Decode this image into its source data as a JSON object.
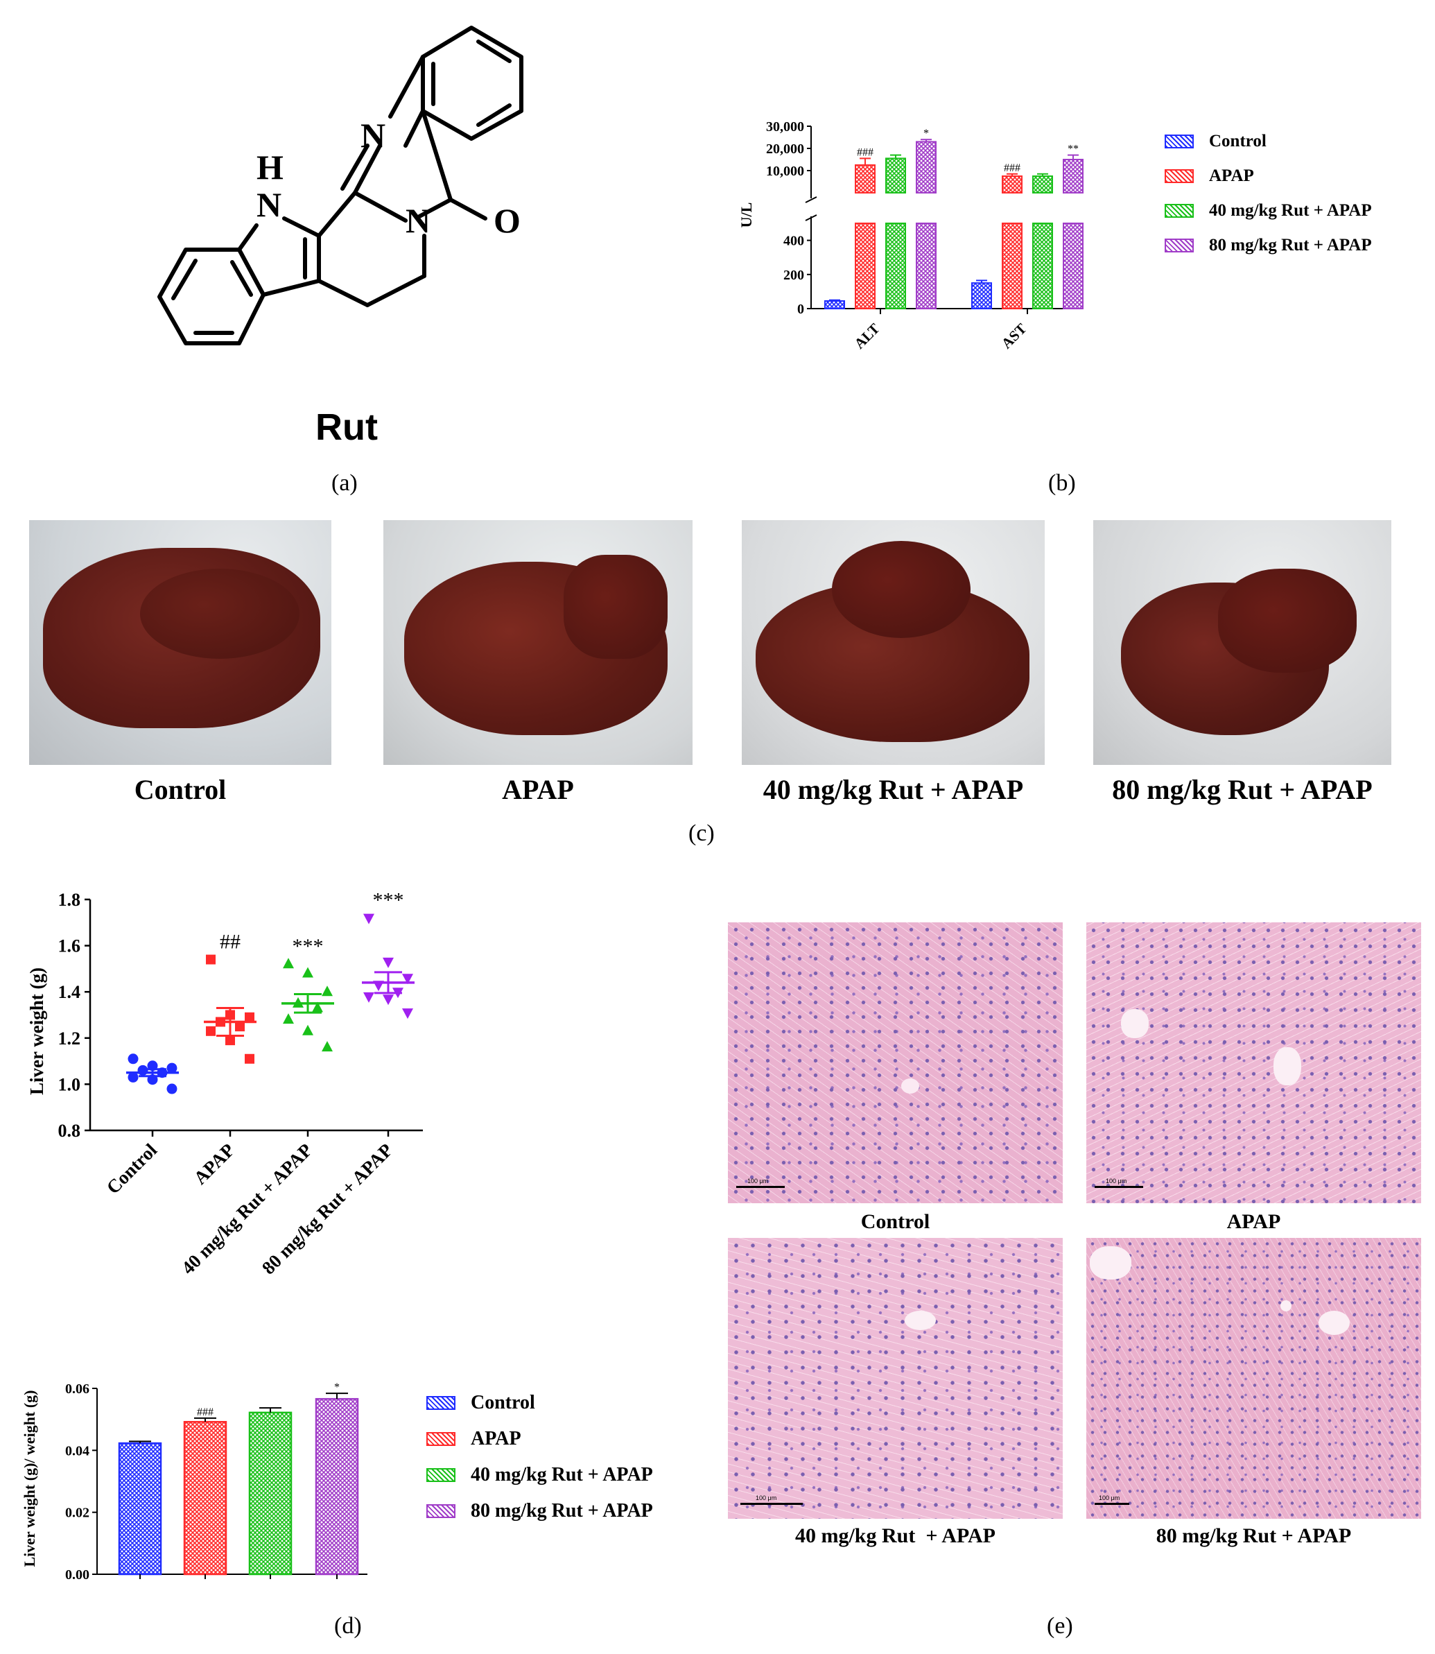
{
  "panels": {
    "a": "(a)",
    "b": "(b)",
    "c": "(c)",
    "d": "(d)",
    "e": "(e)"
  },
  "molecule": {
    "name": "Rut",
    "atoms": {
      "H": "H",
      "N_indole": "N",
      "N_top": "N",
      "N_ring": "N",
      "O": "O"
    }
  },
  "colors": {
    "control": "#1f2cff",
    "apap": "#ff2a2a",
    "rut40": "#19c019",
    "rut80": "#a03cc8",
    "rut80_scatter": "#a020f0"
  },
  "groups": [
    "Control",
    "APAP",
    "40 mg/kg Rut + APAP",
    "80 mg/kg Rut + APAP"
  ],
  "photos": {
    "captions": [
      "Control",
      "APAP",
      "40 mg/kg Rut + APAP",
      "80 mg/kg Rut + APAP"
    ]
  },
  "histology": {
    "captions": [
      "Control",
      "APAP",
      "40 mg/kg Rut  + APAP",
      "80 mg/kg Rut + APAP"
    ],
    "scalebar_label": "100 μm"
  },
  "chart_data": [
    {
      "id": "b",
      "type": "bar",
      "categories": [
        "ALT",
        "AST"
      ],
      "ylabel": "U/L",
      "axis_break": true,
      "ticks_lower": [
        "0",
        "200",
        "400"
      ],
      "ticks_upper": [
        "10,000",
        "20,000",
        "30,000"
      ],
      "series": [
        {
          "name": "Control",
          "values": [
            45,
            150
          ],
          "errors": [
            5,
            15
          ],
          "marks": [
            "",
            ""
          ]
        },
        {
          "name": "APAP",
          "values": [
            12500,
            7500
          ],
          "errors": [
            3000,
            1000
          ],
          "marks": [
            "###",
            "###"
          ]
        },
        {
          "name": "40 mg/kg Rut + APAP",
          "values": [
            15500,
            7500
          ],
          "errors": [
            1500,
            1000
          ],
          "marks": [
            "",
            ""
          ]
        },
        {
          "name": "80 mg/kg Rut + APAP",
          "values": [
            23000,
            15000
          ],
          "errors": [
            1000,
            2000
          ],
          "marks": [
            "*",
            "**"
          ]
        }
      ]
    },
    {
      "id": "d-scatter",
      "type": "scatter",
      "ylabel": "Liver weight (g)",
      "ylim": [
        0.8,
        1.8
      ],
      "yticks": [
        "0.8",
        "1.0",
        "1.2",
        "1.4",
        "1.6",
        "1.8"
      ],
      "categories": [
        "Control",
        "APAP",
        "40 mg/kg Rut + APAP",
        "80 mg/kg Rut + APAP"
      ],
      "series": [
        {
          "name": "Control",
          "points": [
            1.11,
            1.08,
            1.07,
            1.06,
            1.05,
            1.03,
            1.02,
            0.98
          ],
          "mean": 1.05,
          "sem": 0.015,
          "mark": ""
        },
        {
          "name": "APAP",
          "points": [
            1.54,
            1.3,
            1.29,
            1.27,
            1.25,
            1.23,
            1.19,
            1.11
          ],
          "mean": 1.27,
          "sem": 0.06,
          "mark": "##"
        },
        {
          "name": "40 mg/kg Rut + APAP",
          "points": [
            1.52,
            1.48,
            1.4,
            1.35,
            1.33,
            1.28,
            1.23,
            1.16
          ],
          "mean": 1.35,
          "sem": 0.04,
          "mark": "***"
        },
        {
          "name": "80 mg/kg Rut + APAP",
          "points": [
            1.72,
            1.53,
            1.46,
            1.43,
            1.4,
            1.38,
            1.37,
            1.31
          ],
          "mean": 1.44,
          "sem": 0.045,
          "mark": "***"
        }
      ]
    },
    {
      "id": "d-bar",
      "type": "bar",
      "ylabel": "Liver weight (g)/ weight (g)",
      "ylim": [
        0,
        0.06
      ],
      "yticks": [
        "0.00",
        "0.02",
        "0.04",
        "0.06"
      ],
      "categories": [
        "Control",
        "APAP",
        "40 mg/kg Rut + APAP",
        "80 mg/kg Rut + APAP"
      ],
      "values": [
        0.0423,
        0.0492,
        0.0522,
        0.0566
      ],
      "errors": [
        0.0006,
        0.0012,
        0.0015,
        0.0018
      ],
      "marks": [
        "",
        "###",
        "",
        "*"
      ]
    }
  ]
}
